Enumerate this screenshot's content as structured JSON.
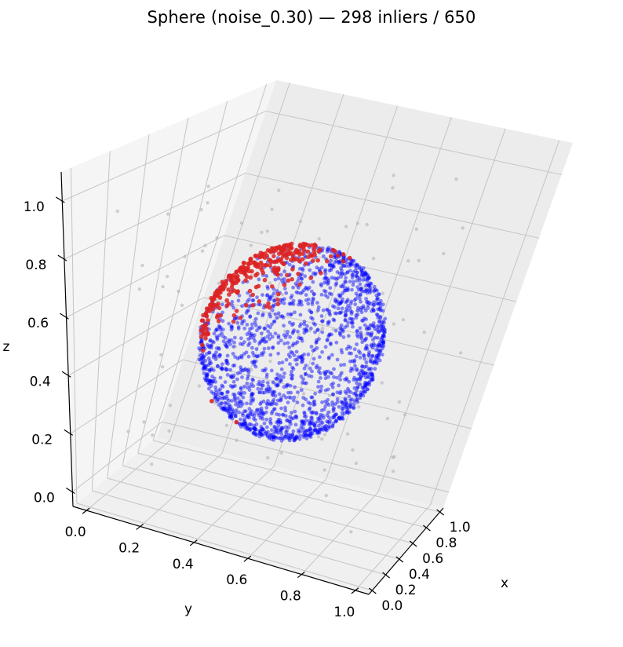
{
  "chart_data": {
    "type": "scatter",
    "title": "Sphere (noise_0.30) — 298 inliers / 650",
    "xlabel": "x",
    "ylabel": "y",
    "zlabel": "z",
    "xlim": [
      -0.05,
      1.05
    ],
    "ylim": [
      -0.05,
      1.05
    ],
    "zlim": [
      -0.05,
      1.1
    ],
    "x_ticks": [
      "0.0",
      "0.2",
      "0.4",
      "0.6",
      "0.8",
      "1.0"
    ],
    "y_ticks": [
      "0.0",
      "0.2",
      "0.4",
      "0.6",
      "0.8",
      "1.0"
    ],
    "z_ticks": [
      "0.0",
      "0.2",
      "0.4",
      "0.6",
      "0.8",
      "1.0"
    ],
    "grid": true,
    "projection": "3d",
    "sphere": {
      "center": [
        0.5,
        0.5,
        0.5
      ],
      "radius": 0.3
    },
    "series": [
      {
        "role": "sphere-surface-points",
        "color": "#0000ff",
        "count_estimate": 1800
      },
      {
        "role": "highlighted-points",
        "color": "#dd2222",
        "count_estimate": 298
      },
      {
        "role": "background-points",
        "color": "#b4b4b4",
        "count_estimate": 110
      }
    ],
    "sample_red_points": [
      {
        "x": 0.2,
        "y": 0.36,
        "z": 0.35
      },
      {
        "x": 0.3,
        "y": 0.42,
        "z": 0.27
      }
    ]
  }
}
